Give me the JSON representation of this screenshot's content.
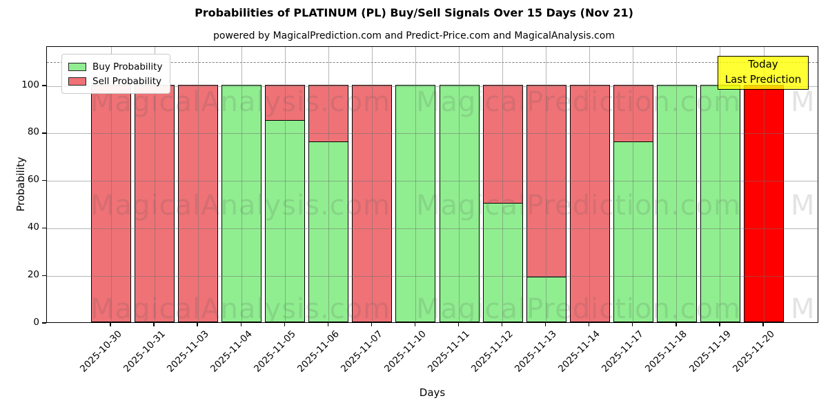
{
  "chart_data": {
    "type": "bar",
    "stacked": true,
    "title": "Probabilities of PLATINUM (PL) Buy/Sell Signals Over 15 Days (Nov 21)",
    "subtitle": "powered by MagicalPrediction.com and Predict-Price.com and MagicalAnalysis.com",
    "xlabel": "Days",
    "ylabel": "Probability",
    "categories": [
      "2025-10-30",
      "2025-10-31",
      "2025-11-03",
      "2025-11-04",
      "2025-11-05",
      "2025-11-06",
      "2025-11-07",
      "2025-11-10",
      "2025-11-11",
      "2025-11-12",
      "2025-11-13",
      "2025-11-14",
      "2025-11-17",
      "2025-11-18",
      "2025-11-19",
      "2025-11-20"
    ],
    "series": [
      {
        "name": "Buy Probability",
        "color": "#90ee90",
        "values": [
          0,
          0,
          0,
          100,
          85,
          76,
          0,
          100,
          100,
          50,
          19,
          0,
          76,
          100,
          100,
          0
        ]
      },
      {
        "name": "Sell Probability",
        "color": "#ef7276",
        "values": [
          100,
          100,
          100,
          0,
          15,
          24,
          100,
          0,
          0,
          50,
          81,
          100,
          24,
          0,
          0,
          100
        ]
      }
    ],
    "today": {
      "index": 15,
      "bar_color": "#ff0000",
      "box_color": "#ffff00",
      "label_line1": "Today",
      "label_line2": "Last Prediction"
    },
    "ylim": [
      0,
      116.6
    ],
    "yticks": [
      0,
      20,
      40,
      60,
      80,
      100
    ],
    "grid": true,
    "dashed_line_y": 110,
    "legend_position": "upper-left",
    "watermarks": [
      "MagicalAnalysis.com",
      "MagicalPrediction.com"
    ]
  }
}
